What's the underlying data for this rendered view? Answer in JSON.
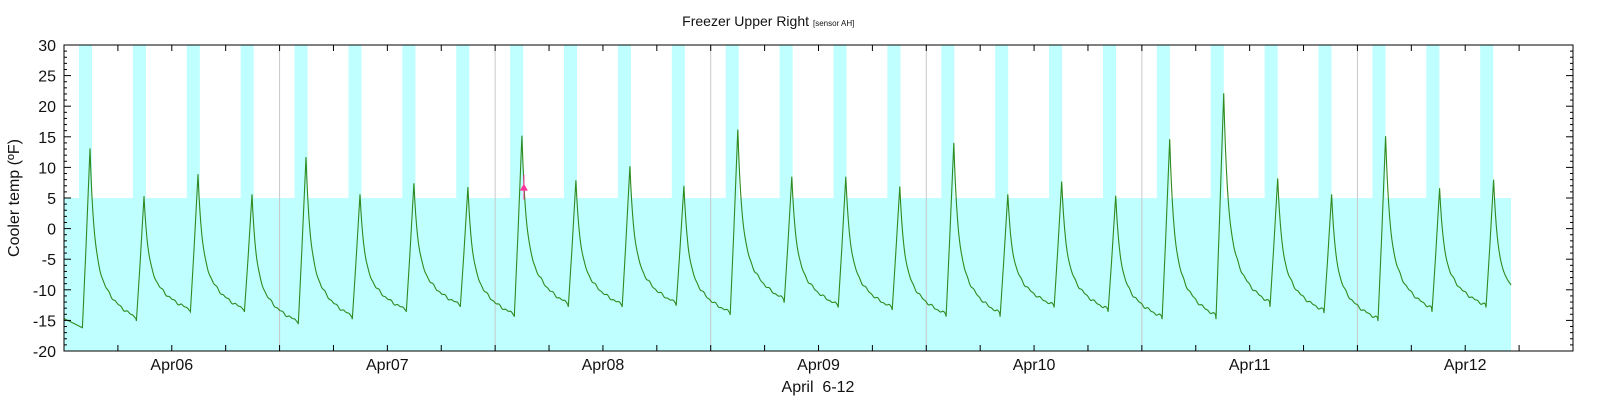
{
  "chart_data": {
    "type": "line",
    "title": "Freezer Upper Right",
    "subtitle": "[sensor AH]",
    "xlabel": "April  6-12",
    "ylabel": "Cooler temp (ºF)",
    "xlim_hours": [
      0,
      168
    ],
    "ylim": [
      -20,
      30
    ],
    "y_ticks": [
      -20,
      -15,
      -10,
      -5,
      0,
      5,
      10,
      15,
      20,
      25,
      30
    ],
    "x_tick_labels": [
      {
        "label": "Apr06",
        "hour": 12
      },
      {
        "label": "Apr07",
        "hour": 36
      },
      {
        "label": "Apr08",
        "hour": 60
      },
      {
        "label": "Apr09",
        "hour": 84
      },
      {
        "label": "Apr10",
        "hour": 108
      },
      {
        "label": "Apr11",
        "hour": 132
      },
      {
        "label": "Apr12",
        "hour": 156
      }
    ],
    "minor_tick_interval_hours": 6,
    "midnight_gridlines_hours": [
      24,
      48,
      72,
      96,
      120,
      144
    ],
    "safe_range": {
      "low": -20,
      "high": 5,
      "end_hour": 161.1,
      "color": "#bfffff"
    },
    "defrost_bands": {
      "first_start_hour": 1.67,
      "period_hours": 6,
      "duration_hours": 1.45,
      "count": 27,
      "low": 5,
      "high": 30,
      "color": "#bfffff"
    },
    "series": [
      {
        "name": "Freezer Upper Right temperature",
        "color": "#2e8b1e",
        "start_value": -14.7,
        "first_peak_hour": 2.9,
        "period_hours": 6.01,
        "end_hour": 161.1,
        "end_value": -9,
        "cycle_peaks": [
          13.1,
          5.3,
          8.9,
          5.6,
          11.7,
          5.6,
          7.4,
          6.8,
          15.2,
          7.9,
          10.2,
          7.0,
          16.2,
          8.5,
          8.5,
          6.9,
          14.0,
          5.6,
          7.7,
          5.4,
          14.6,
          22.1,
          8.2,
          5.6,
          15.1,
          6.6,
          8.0
        ],
        "cycle_minima": [
          -16.2,
          -15.1,
          -13.6,
          -13.6,
          -15.6,
          -14.8,
          -13.6,
          -12.8,
          -14.4,
          -12.8,
          -12.8,
          -12.6,
          -14.1,
          -12.1,
          -12.9,
          -13.3,
          -14.4,
          -14.4,
          -12.9,
          -13.6,
          -14.8,
          -14.8,
          -12.8,
          -13.8,
          -15.1,
          -13.6,
          -12.9
        ]
      }
    ],
    "marker": {
      "hour": 51.2,
      "value": 6.7,
      "shape": "triangle",
      "color": "#ff3399"
    },
    "grid": false,
    "legend": "none"
  }
}
